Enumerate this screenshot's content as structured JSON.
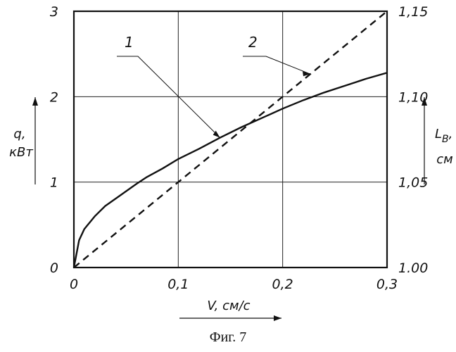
{
  "chart_data": {
    "type": "line",
    "x": {
      "label": "V, см/с",
      "range": [
        0,
        0.3
      ],
      "ticks": [
        0,
        0.1,
        0.2,
        0.3
      ],
      "tick_labels": [
        "0",
        "0,1",
        "0,2",
        "0,3"
      ]
    },
    "y_left": {
      "label": [
        "q,",
        "кВт"
      ],
      "range": [
        0,
        3
      ],
      "ticks": [
        0,
        1,
        2,
        3
      ],
      "tick_labels": [
        "0",
        "1",
        "2",
        "3"
      ]
    },
    "y_right": {
      "label": [
        "L",
        "B",
        ",",
        "см"
      ],
      "range": [
        1.0,
        1.15
      ],
      "ticks": [
        1.0,
        1.05,
        1.1,
        1.15
      ],
      "tick_labels": [
        "1.00",
        "1,05",
        "1,10",
        "1,15"
      ]
    },
    "grid": true,
    "series": [
      {
        "name": "1",
        "axis": "left",
        "style": "solid",
        "points": [
          [
            0,
            0
          ],
          [
            0.005,
            0.32
          ],
          [
            0.01,
            0.45
          ],
          [
            0.02,
            0.6
          ],
          [
            0.03,
            0.72
          ],
          [
            0.045,
            0.85
          ],
          [
            0.06,
            0.98
          ],
          [
            0.07,
            1.06
          ],
          [
            0.085,
            1.16
          ],
          [
            0.1,
            1.27
          ],
          [
            0.12,
            1.39
          ],
          [
            0.14,
            1.52
          ],
          [
            0.16,
            1.64
          ],
          [
            0.18,
            1.75
          ],
          [
            0.2,
            1.86
          ],
          [
            0.22,
            1.96
          ],
          [
            0.24,
            2.05
          ],
          [
            0.26,
            2.13
          ],
          [
            0.28,
            2.21
          ],
          [
            0.3,
            2.28
          ]
        ]
      },
      {
        "name": "2",
        "axis": "right",
        "style": "dashed",
        "points": [
          [
            0,
            1.0
          ],
          [
            0.3,
            1.15
          ]
        ]
      }
    ]
  },
  "caption": "Фиг. 7"
}
